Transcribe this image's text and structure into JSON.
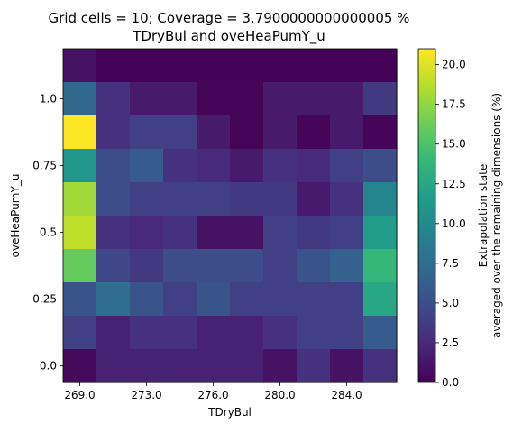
{
  "chart_data": {
    "type": "heatmap",
    "title": [
      "Grid cells = 10; Coverage = 3.7900000000000005 %",
      "TDryBul and oveHeaPumY_u"
    ],
    "xlabel": "TDryBul",
    "ylabel": "oveHeaPumY_u",
    "x_tick_labels": [
      "269.0",
      "273.0",
      "276.0",
      "280.0",
      "284.0"
    ],
    "y_tick_labels": [
      "0.0",
      "0.25",
      "0.5",
      "0.75",
      "1.0"
    ],
    "colorbar": {
      "label": [
        "Extrapolation state",
        "averaged over the remaining dimensions (%)"
      ],
      "ticks": [
        "0.0",
        "2.5",
        "5.0",
        "7.5",
        "10.0",
        "12.5",
        "15.0",
        "17.5",
        "20.0"
      ],
      "range": [
        0,
        21
      ],
      "colormap": "viridis"
    },
    "rows_top_to_bottom": [
      [
        1.0,
        0.1,
        0.1,
        0.1,
        0.1,
        0.1,
        0.1,
        0.1,
        0.1,
        0.1
      ],
      [
        7.0,
        3.0,
        1.5,
        1.5,
        0.2,
        0.2,
        1.5,
        1.5,
        1.5,
        3.5
      ],
      [
        21.0,
        3.0,
        4.0,
        4.0,
        1.5,
        0.2,
        1.5,
        0.3,
        1.5,
        0.3
      ],
      [
        11.0,
        5.0,
        6.0,
        3.0,
        2.5,
        1.5,
        3.0,
        2.5,
        4.0,
        5.0
      ],
      [
        18.0,
        5.0,
        4.0,
        4.0,
        4.0,
        3.5,
        3.5,
        1.5,
        3.0,
        9.5
      ],
      [
        19.0,
        3.0,
        2.5,
        3.0,
        1.0,
        1.0,
        4.0,
        3.5,
        4.0,
        11.5
      ],
      [
        16.0,
        4.5,
        3.5,
        5.0,
        5.0,
        5.0,
        4.0,
        5.5,
        6.5,
        14.0
      ],
      [
        5.5,
        7.5,
        5.5,
        4.0,
        5.5,
        4.0,
        4.0,
        4.0,
        4.0,
        12.5
      ],
      [
        4.0,
        2.0,
        3.0,
        3.0,
        2.0,
        2.0,
        3.0,
        4.0,
        4.0,
        6.0
      ],
      [
        0.5,
        2.0,
        2.0,
        2.0,
        2.0,
        2.0,
        1.0,
        3.0,
        1.0,
        3.0
      ]
    ]
  }
}
